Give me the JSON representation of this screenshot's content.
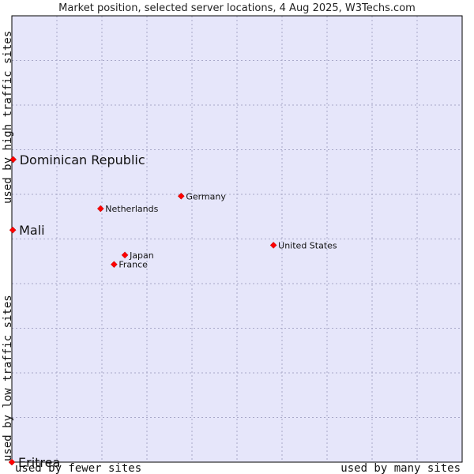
{
  "chart_data": {
    "type": "scatter",
    "title": "Market position, selected server locations, 4 Aug 2025, W3Techs.com",
    "xlabel_left": "used by fewer sites",
    "xlabel_right": "used by many sites",
    "ylabel_top": "used by high traffic sites",
    "ylabel_bottom": "used by low traffic sites",
    "xlim": [
      0,
      100
    ],
    "ylim": [
      0,
      100
    ],
    "grid": true,
    "points": [
      {
        "name": "Dominican Republic",
        "x": 0.3,
        "y": 67.8,
        "emphasis": true
      },
      {
        "name": "Mali",
        "x": 0.2,
        "y": 52.0,
        "emphasis": true
      },
      {
        "name": "Eritrea",
        "x": 0.0,
        "y": 0.0,
        "emphasis": true
      },
      {
        "name": "Germany",
        "x": 37.6,
        "y": 59.6,
        "emphasis": false
      },
      {
        "name": "Netherlands",
        "x": 19.7,
        "y": 56.8,
        "emphasis": false
      },
      {
        "name": "United States",
        "x": 58.1,
        "y": 48.6,
        "emphasis": false
      },
      {
        "name": "Japan",
        "x": 25.1,
        "y": 46.4,
        "emphasis": false
      },
      {
        "name": "France",
        "x": 22.7,
        "y": 44.3,
        "emphasis": false
      }
    ]
  },
  "colors": {
    "plot_bg": "#e6e6fa",
    "grid": "#a8a8c8",
    "marker": "#ff0000",
    "border": "#000000"
  }
}
